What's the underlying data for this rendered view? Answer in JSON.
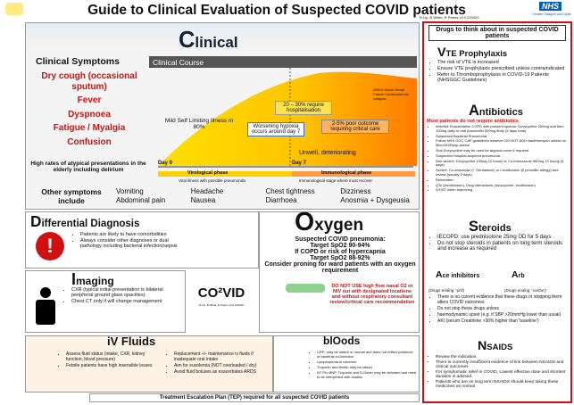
{
  "header": {
    "title": "Guide to Clinical Evaluation of Suspected COVID patients",
    "authors": "R Lip, B White, R Peters v3.0 220420",
    "logo": "NHS",
    "logo_sub": "Greater Glasgow and Clyde"
  },
  "clinical": {
    "heading": "Clinical",
    "symptoms_title": "Clinical Symptoms",
    "symptoms": [
      "Dry cough (occasional sputum)",
      "Fever",
      "Dyspnoea",
      "Fatigue / Myalgia",
      "Confusion"
    ],
    "note": "High rates of atypical presentations in the elderly including delirium",
    "course_title": "Clinical Course",
    "mild": "Mild Self Limiting Illness in 80%",
    "hypoxia": "Worsening hypoxia occurs around day 7",
    "hospital": "20 – 30% require hospitalisation",
    "critical": "2-5% poor outcome requiring critical care",
    "complications": "ARDS Shock Renal Failure Cardiovascular collapse",
    "unwell": "Unwell, deteriorating",
    "day0": "Day 0",
    "day7": "Day 7",
    "virological": "Virological phase",
    "immunological": "Immunological phase",
    "virological_note": "Viral illness with possible pneumonitis",
    "immunological_note": "Immunological stage where most recover",
    "other_title": "Other symptoms include",
    "other": [
      "Vomiting",
      "Abdominal pain",
      "Headache",
      "Nausea",
      "Chest tightness",
      "Diarrhoea",
      "Dizziness",
      "Anosmia + Dysgeusia"
    ]
  },
  "differential": {
    "title": "Differential Diagnosis",
    "items": [
      "Patients are likely to have comorbidities",
      "Always consider other diagnoses or dual pathology including bacterial infection/sepsis"
    ]
  },
  "imaging": {
    "title": "Imaging",
    "items": [
      "CXR (typical initial presentation is bilateral peripheral ground glass opacities)",
      "Chest CT only if will change management"
    ]
  },
  "covid": "CO²VID",
  "oxygen": {
    "title": "Oxygen",
    "lines": [
      "Suspected COVID pneumonia:",
      "Target SpO2 90-94%",
      "If COPD or risk of hypercapnia",
      "Target SpO2 88-92%",
      "Consider proning for ward patients with an oxygen requirement"
    ],
    "warning": "DO NOT USE high flow nasal O2 or NIV out with designated locations and without respiratory consultant review/critical care recommendation"
  },
  "fluids": {
    "title": "iV Fluids",
    "left": [
      "Assess fluid status (intake, CXR, kidney function, blood pressure)",
      "Febrile patients have high insensible losses"
    ],
    "right": [
      "Replacement +/- maintenance iv fluids if inadequate oral intake",
      "Aim for euvolemia (NOT overloaded / dry)",
      "Avoid fluid boluses as exacerbates ARDS"
    ]
  },
  "bloods": {
    "title": "blOods",
    "items": [
      "CRP: may be raised or normal and does not reflect presence of bacterial co-infection",
      "Lymphopenia is common",
      "Troponin and ferritin may be raised",
      "NT Pro BNP, Troponin and D-Dimer may be elevated and need to be interpreted with caution"
    ]
  },
  "footer": "Treatment Escalation Plan (TEP) required for all suspected COVID patients",
  "drugs": {
    "heading": "Drugs to think about in suspected COVID patients",
    "vte": {
      "title": "VTE Prophylaxis",
      "items": [
        "The risk of VTE is increased",
        "Ensure VTE prophylaxis prescribed unless contraindicated",
        "Refer to Thromboprophylaxis in COVID-19 Patients (NHSGGC Guidelines)"
      ]
    },
    "antibiotics": {
      "title": "Antibiotics",
      "subtitle": "Most patients do not require antibiotics",
      "items": [
        "Infective Exacerbation COPD with purulent sputum: Doxycycline 200mg oral then 100mg daily or oral Amoxicillin 500mg 8hrly (5 days total)",
        "Suspected Bacterial Pneumonia:",
        "Follow NHS GGC CAP guidelines however DO NOT ADD clarithromycin unless on Micro/ID/Resp advice",
        "Oral Doxycycline may be used for atypical cover if required",
        "Suspected Hospital acquired pneumonia:",
        "Non-severe: Doxycycline 100mg 12 hourly or Co-trimoxazole 960mg 12 hourly (5 days)",
        "Severe: Co-amoxiclav (+ Gentamicin) or Levofloxacin (if penicillin allergy) and review (usually 5 days)",
        "Remember:",
        "QTc (levofloxacin), Drug interactions (doxycycline, levofloxacin)",
        "IVOST when improving"
      ]
    },
    "steroids": {
      "title": "Steroids",
      "items": [
        "IECOPD: use prednisolone 25mg OD for 5 days",
        "Do not stop steroids in patients on long term steroids and increase as required"
      ]
    },
    "ace": {
      "title": "Ace inhibitors",
      "title2": "Arb",
      "sub": "(Drugs ending '-pril')",
      "sub2": "(Drugs ending '-sartan')",
      "items": [
        "There is no current evidence that these drugs or stopping them alters COVID outcomes",
        "Do not stop these drugs unless",
        "haemodynamic upset (e.g. if SBP >20mmHg lower than usual)",
        "AKI (serum Creatinine >30% higher than 'baseline')"
      ]
    },
    "nsaids": {
      "title": "NSAIDS",
      "items": [
        "Review the indication.",
        "There is currently insufficient evidence of link between NSAIDS and clinical outcomes",
        "For symptomatic relief in COVID, Lowest effective dose and shortest duration is advised.",
        "Patients who are on long term NSAIDS should keep taking these medicines as normal"
      ]
    }
  }
}
